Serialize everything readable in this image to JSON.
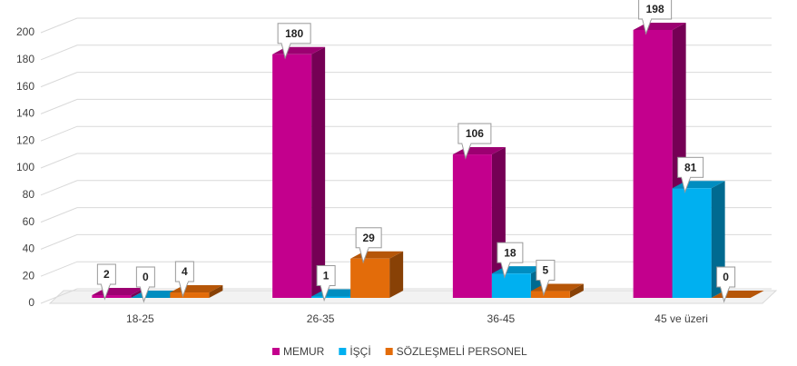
{
  "chart_data": {
    "type": "bar3d",
    "categories": [
      "18-25",
      "26-35",
      "36-45",
      "45 ve üzeri"
    ],
    "series": [
      {
        "name": "MEMUR",
        "color": "#c3008d",
        "values": [
          2,
          180,
          106,
          198
        ]
      },
      {
        "name": "İŞÇİ",
        "color": "#00b0f0",
        "values": [
          0,
          1,
          18,
          81
        ]
      },
      {
        "name": "SÖZLEŞMELİ PERSONEL",
        "color": "#e36c0a",
        "values": [
          4,
          29,
          5,
          0
        ]
      }
    ],
    "ylim": [
      0,
      200
    ],
    "yticks": [
      0,
      20,
      40,
      60,
      80,
      100,
      120,
      140,
      160,
      180,
      200
    ],
    "grid": true,
    "legend": "bottom"
  }
}
